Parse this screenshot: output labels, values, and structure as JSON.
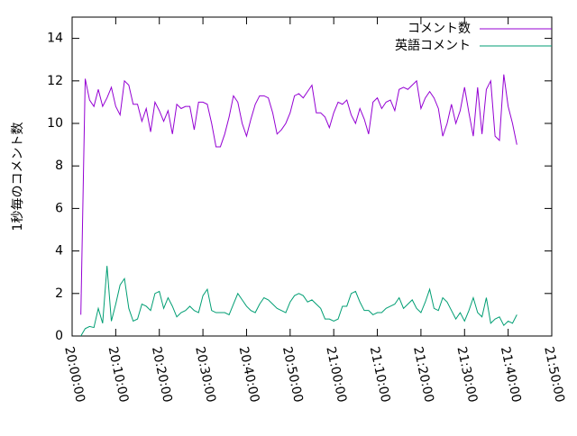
{
  "chart_data": {
    "type": "line",
    "ylabel": "1秒毎のコメント数",
    "x": [
      "20:02:00",
      "20:03:00",
      "20:04:00",
      "20:05:00",
      "20:06:00",
      "20:07:00",
      "20:08:00",
      "20:09:00",
      "20:10:00",
      "20:11:00",
      "20:12:00",
      "20:13:00",
      "20:14:00",
      "20:15:00",
      "20:16:00",
      "20:17:00",
      "20:18:00",
      "20:19:00",
      "20:20:00",
      "20:21:00",
      "20:22:00",
      "20:23:00",
      "20:24:00",
      "20:25:00",
      "20:26:00",
      "20:27:00",
      "20:28:00",
      "20:29:00",
      "20:30:00",
      "20:31:00",
      "20:32:00",
      "20:33:00",
      "20:34:00",
      "20:35:00",
      "20:36:00",
      "20:37:00",
      "20:38:00",
      "20:39:00",
      "20:40:00",
      "20:41:00",
      "20:42:00",
      "20:43:00",
      "20:44:00",
      "20:45:00",
      "20:46:00",
      "20:47:00",
      "20:48:00",
      "20:49:00",
      "20:50:00",
      "20:51:00",
      "20:52:00",
      "20:53:00",
      "20:54:00",
      "20:55:00",
      "20:56:00",
      "20:57:00",
      "20:58:00",
      "20:59:00",
      "21:00:00",
      "21:01:00",
      "21:02:00",
      "21:03:00",
      "21:04:00",
      "21:05:00",
      "21:06:00",
      "21:07:00",
      "21:08:00",
      "21:09:00",
      "21:10:00",
      "21:11:00",
      "21:12:00",
      "21:13:00",
      "21:14:00",
      "21:15:00",
      "21:16:00",
      "21:17:00",
      "21:18:00",
      "21:19:00",
      "21:20:00",
      "21:21:00",
      "21:22:00",
      "21:23:00",
      "21:24:00",
      "21:25:00",
      "21:26:00",
      "21:27:00",
      "21:28:00",
      "21:29:00",
      "21:30:00",
      "21:31:00",
      "21:32:00",
      "21:33:00",
      "21:34:00",
      "21:35:00",
      "21:36:00",
      "21:37:00",
      "21:38:00",
      "21:39:00",
      "21:40:00",
      "21:41:00",
      "21:42:00"
    ],
    "series": [
      {
        "name": "コメント数",
        "color": "#9400d3",
        "values": [
          1.0,
          12.1,
          11.1,
          10.8,
          11.6,
          10.8,
          11.2,
          11.7,
          10.8,
          10.4,
          12.0,
          11.8,
          10.9,
          10.9,
          10.1,
          10.7,
          9.6,
          11.0,
          10.6,
          10.1,
          10.6,
          9.5,
          10.9,
          10.7,
          10.8,
          10.8,
          9.7,
          11.0,
          11.0,
          10.9,
          10.0,
          8.9,
          8.9,
          9.5,
          10.3,
          11.3,
          11.0,
          10.0,
          9.4,
          10.2,
          10.9,
          11.3,
          11.3,
          11.2,
          10.5,
          9.5,
          9.7,
          10.0,
          10.5,
          11.3,
          11.4,
          11.2,
          11.5,
          11.8,
          10.5,
          10.5,
          10.3,
          9.8,
          10.5,
          11.0,
          10.9,
          11.1,
          10.4,
          10.0,
          10.7,
          10.2,
          9.5,
          11.0,
          11.2,
          10.7,
          11.0,
          11.1,
          10.6,
          11.6,
          11.7,
          11.6,
          11.8,
          12.0,
          10.7,
          11.2,
          11.5,
          11.2,
          10.7,
          9.4,
          10.0,
          10.9,
          10.0,
          10.6,
          11.7,
          10.5,
          9.4,
          11.7,
          9.5,
          11.6,
          12.0,
          9.4,
          9.2,
          12.3,
          10.8,
          10.0,
          9.0
        ]
      },
      {
        "name": "英語コメント",
        "color": "#009e73",
        "values": [
          0.0,
          0.35,
          0.45,
          0.4,
          1.3,
          0.6,
          3.3,
          0.7,
          1.5,
          2.4,
          2.7,
          1.3,
          0.7,
          0.8,
          1.5,
          1.4,
          1.2,
          2.0,
          2.1,
          1.3,
          1.8,
          1.4,
          0.9,
          1.1,
          1.2,
          1.4,
          1.2,
          1.1,
          1.9,
          2.2,
          1.2,
          1.1,
          1.1,
          1.1,
          1.0,
          1.5,
          2.0,
          1.7,
          1.4,
          1.2,
          1.1,
          1.5,
          1.8,
          1.7,
          1.5,
          1.3,
          1.2,
          1.1,
          1.6,
          1.9,
          2.0,
          1.9,
          1.6,
          1.7,
          1.5,
          1.3,
          0.8,
          0.8,
          0.7,
          0.8,
          1.4,
          1.4,
          2.0,
          2.1,
          1.6,
          1.2,
          1.2,
          1.0,
          1.1,
          1.1,
          1.3,
          1.4,
          1.5,
          1.8,
          1.3,
          1.5,
          1.7,
          1.3,
          1.1,
          1.6,
          2.2,
          1.3,
          1.2,
          1.8,
          1.6,
          1.2,
          0.8,
          1.1,
          0.7,
          1.2,
          1.8,
          1.1,
          0.9,
          1.8,
          0.6,
          0.8,
          0.9,
          0.5,
          0.7,
          0.6,
          1.0
        ]
      }
    ],
    "xlim": [
      "20:00:00",
      "21:50:00"
    ],
    "xticks": [
      "20:00:00",
      "20:10:00",
      "20:20:00",
      "20:30:00",
      "20:40:00",
      "20:50:00",
      "21:00:00",
      "21:10:00",
      "21:20:00",
      "21:30:00",
      "21:40:00",
      "21:50:00"
    ],
    "ylim": [
      0,
      15
    ],
    "yticks": [
      0,
      2,
      4,
      6,
      8,
      10,
      12,
      14
    ],
    "legend": "top-right"
  }
}
